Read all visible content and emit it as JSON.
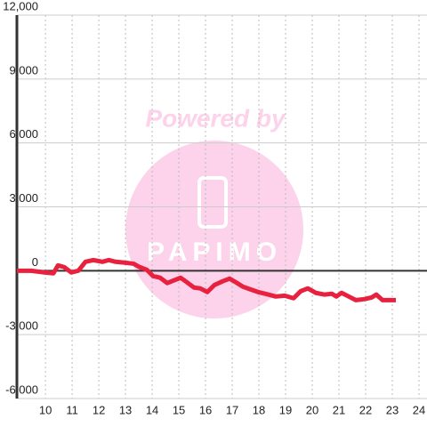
{
  "chart_data": {
    "type": "line",
    "watermark": {
      "top": "Powered by",
      "logo": "PAPIMO"
    },
    "x": [
      8.93,
      9.467,
      9.967,
      10.3,
      10.467,
      10.7,
      10.967,
      11.233,
      11.5,
      11.8,
      12.133,
      12.367,
      12.633,
      12.967,
      13.3,
      13.533,
      13.8,
      14.033,
      14.3,
      14.567,
      14.8,
      15.067,
      15.3,
      15.567,
      15.8,
      16.067,
      16.333,
      16.633,
      16.9,
      17.133,
      17.4,
      17.667,
      17.967,
      18.233,
      18.633,
      18.967,
      19.3,
      19.567,
      19.833,
      20.133,
      20.467,
      20.733,
      20.9,
      21.1,
      21.367,
      21.633,
      21.967,
      22.233,
      22.4,
      22.633,
      23.133
    ],
    "series": [
      {
        "color": "#e8213f",
        "values": [
          0,
          0,
          -80,
          -120,
          250,
          170,
          -80,
          0,
          420,
          500,
          420,
          500,
          420,
          380,
          330,
          170,
          40,
          -250,
          -330,
          -580,
          -460,
          -330,
          -540,
          -790,
          -830,
          -1000,
          -670,
          -500,
          -370,
          -540,
          -750,
          -870,
          -1000,
          -1080,
          -1210,
          -1170,
          -1290,
          -960,
          -830,
          -1040,
          -1120,
          -1080,
          -1210,
          -1040,
          -1210,
          -1380,
          -1330,
          -1250,
          -1120,
          -1380,
          -1380
        ]
      }
    ],
    "xlim": [
      8.93,
      24.3
    ],
    "xticks": [
      10,
      11,
      12,
      13,
      14,
      15,
      16,
      17,
      18,
      19,
      20,
      21,
      22,
      23,
      24
    ],
    "ylim": [
      -6000,
      12000
    ],
    "yticks": [
      {
        "value": -6000,
        "label": "-6,000"
      },
      {
        "value": -3000,
        "label": "-3,000"
      },
      0,
      {
        "value": 3000,
        "label": "3,000"
      },
      {
        "value": 6000,
        "label": "6,000"
      },
      {
        "value": 9000,
        "label": "9,000"
      },
      {
        "value": 12000,
        "label": "12,000"
      }
    ],
    "grid": true
  }
}
